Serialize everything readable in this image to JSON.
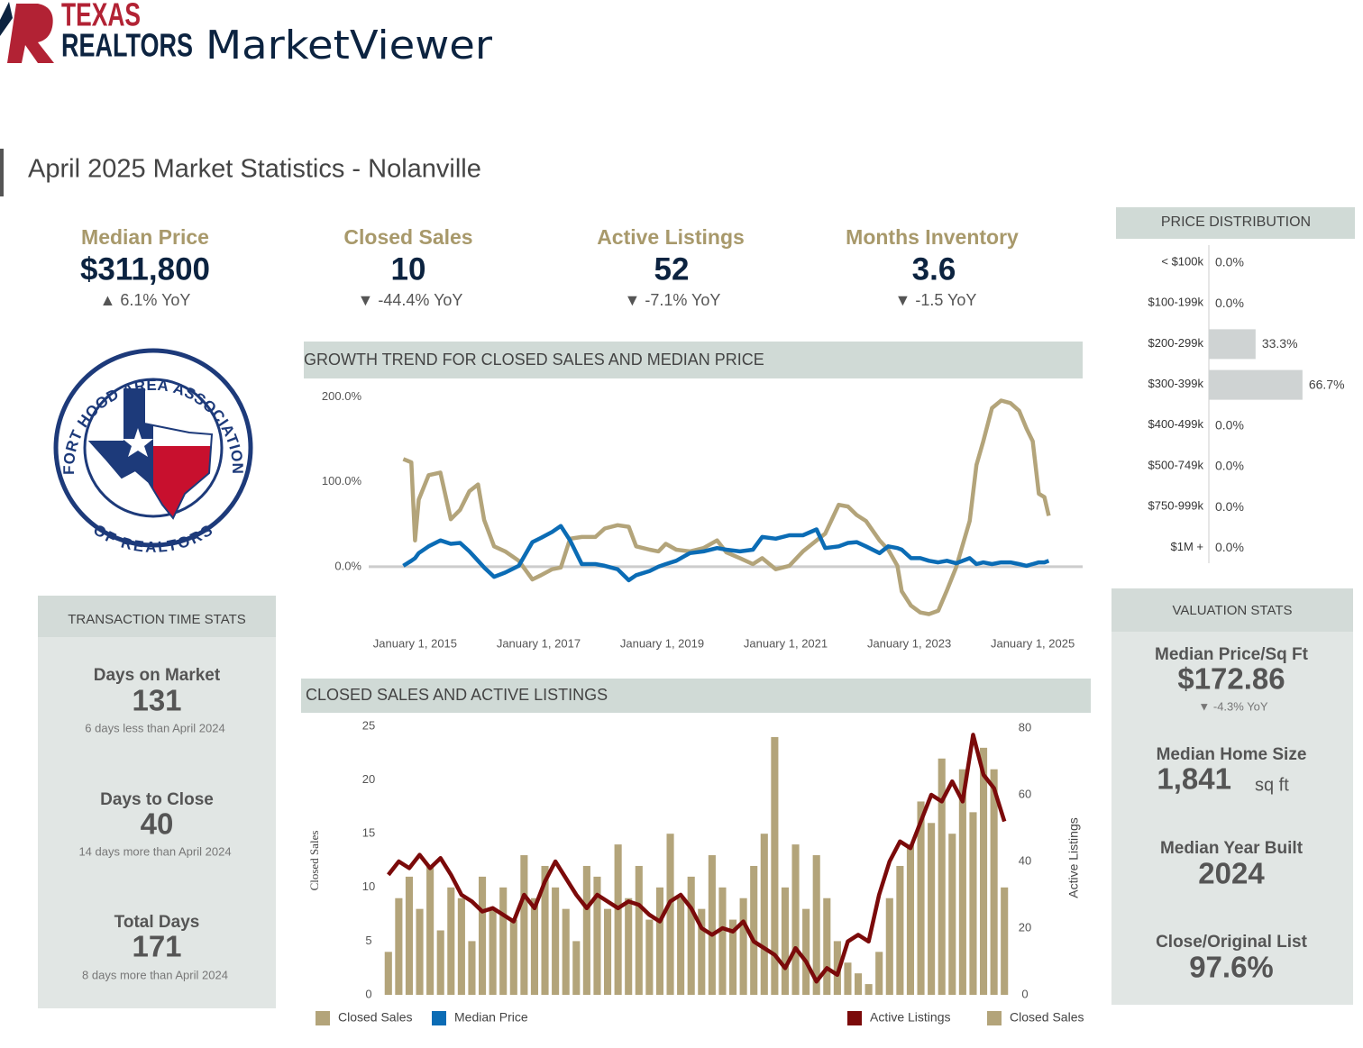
{
  "brand": {
    "line1": "TEXAS",
    "line2": "REALTORS",
    "product": "MarketViewer"
  },
  "page_title": "April 2025 Market Statistics - Nolanville",
  "kpis": [
    {
      "label": "Median Price",
      "value": "$311,800",
      "change": "▲ 6.1% YoY"
    },
    {
      "label": "Closed Sales",
      "value": 10,
      "change": "▼ -44.4% YoY"
    },
    {
      "label": "Active Listings",
      "value": 52,
      "change": "▼ -7.1% YoY"
    },
    {
      "label": "Months Inventory",
      "value": 3.6,
      "change": "▼ -1.5 YoY"
    }
  ],
  "association": {
    "top": "FORT HOOD AREA ASSOCIATION",
    "bottom": "OF REALTORS"
  },
  "transaction_stats": {
    "title": "TRANSACTION TIME STATS",
    "items": [
      {
        "label": "Days on Market",
        "value": 131,
        "note": "6 days less than April 2024"
      },
      {
        "label": "Days to Close",
        "value": 40,
        "note": "14 days more than April 2024"
      },
      {
        "label": "Total Days",
        "value": 171,
        "note": "8 days more than April 2024"
      }
    ]
  },
  "valuation_stats": {
    "title": "VALUATION STATS",
    "items": [
      {
        "label": "Median Price/Sq Ft",
        "value": "$172.86",
        "change": "▼ -4.3% YoY"
      },
      {
        "label": "Median Home Size",
        "value": "1,841",
        "unit": "sq ft"
      },
      {
        "label": "Median Year Built",
        "value": 2024
      },
      {
        "label": "Close/Original List",
        "value": "97.6%"
      }
    ]
  },
  "chart_data": [
    {
      "type": "line",
      "title": "GROWTH TREND FOR CLOSED SALES AND MEDIAN PRICE",
      "x": [
        2014.81,
        2014.94,
        2015.0,
        2015.06,
        2015.22,
        2015.41,
        2015.58,
        2015.73,
        2015.88,
        2016.02,
        2016.12,
        2016.28,
        2016.46,
        2016.68,
        2016.9,
        2017.04,
        2017.22,
        2017.36,
        2017.51,
        2017.7,
        2017.92,
        2018.07,
        2018.28,
        2018.46,
        2018.58,
        2018.8,
        2018.94,
        2019.06,
        2019.23,
        2019.45,
        2019.67,
        2019.89,
        2020.04,
        2020.26,
        2020.47,
        2020.62,
        2020.84,
        2021.06,
        2021.28,
        2021.5,
        2021.64,
        2021.86,
        2022.01,
        2022.15,
        2022.3,
        2022.52,
        2022.66,
        2022.81,
        2022.88,
        2023.03,
        2023.18,
        2023.32,
        2023.47,
        2023.61,
        2023.76,
        2023.98,
        2024.09,
        2024.2,
        2024.34,
        2024.49,
        2024.64,
        2024.78,
        2024.9,
        2025.0,
        2025.1,
        2025.19,
        2025.26
      ],
      "series": [
        {
          "name": "Closed Sales",
          "color": "#b3a47a",
          "values": [
            127,
            123,
            31,
            79,
            108,
            111,
            56,
            67,
            89,
            97,
            55,
            24,
            18,
            7,
            -15,
            -10,
            -3,
            -1,
            33,
            35,
            35,
            45,
            49,
            47,
            24,
            20,
            18,
            27,
            20,
            18,
            22,
            31,
            17,
            10,
            3,
            10,
            -3,
            1,
            18,
            31,
            39,
            73,
            71,
            61,
            54,
            31,
            20,
            1,
            -29,
            -46,
            -54,
            -56,
            -52,
            -28,
            -1,
            54,
            120,
            148,
            187,
            196,
            193,
            184,
            163,
            148,
            86,
            82,
            60
          ]
        },
        {
          "name": "Median Price",
          "color": "#0b6cb5",
          "values": [
            1,
            7,
            10,
            16,
            24,
            31,
            27,
            28,
            18,
            7,
            -1,
            -12,
            -7,
            1,
            29,
            34,
            41,
            48,
            31,
            3,
            3,
            1,
            -3,
            -16,
            -10,
            -5,
            0,
            3,
            7,
            16,
            18,
            22,
            20,
            18,
            20,
            35,
            33,
            37,
            37,
            44,
            22,
            24,
            28,
            29,
            24,
            16,
            24,
            22,
            20,
            10,
            10,
            7,
            5,
            7,
            4,
            10,
            3,
            5,
            3,
            5,
            5,
            3,
            1,
            3,
            5,
            5,
            7
          ]
        }
      ],
      "xlim": [
        2014.6,
        2025.4
      ],
      "xticks": [
        {
          "value": 2015,
          "label": "January 1, 2015"
        },
        {
          "value": 2017,
          "label": "January 1, 2017"
        },
        {
          "value": 2019,
          "label": "January 1, 2019"
        },
        {
          "value": 2021,
          "label": "January 1, 2021"
        },
        {
          "value": 2023,
          "label": "January 1, 2023"
        },
        {
          "value": 2025,
          "label": "January 1, 2025"
        }
      ],
      "ylim": [
        -65,
        205
      ],
      "yticks": [
        {
          "value": 0,
          "label": "0.0%"
        },
        {
          "value": 100,
          "label": "100.0%"
        },
        {
          "value": 200,
          "label": "200.0%"
        }
      ],
      "legend": "bottom-left"
    },
    {
      "type": "combo",
      "title": "CLOSED SALES AND ACTIVE LISTINGS",
      "categories": [
        null,
        null,
        null,
        null,
        null,
        null,
        null,
        null,
        null,
        null,
        null,
        null,
        null,
        null,
        null,
        null,
        null,
        null,
        null,
        null,
        null,
        null,
        null,
        null,
        null,
        null,
        null,
        null,
        null,
        null,
        null,
        null,
        null,
        null,
        null,
        null,
        null,
        null,
        null,
        null,
        null,
        null,
        null,
        null,
        null,
        null,
        null,
        null,
        null,
        null,
        null,
        null,
        null,
        null,
        null,
        null,
        null,
        null,
        null,
        null
      ],
      "series": [
        {
          "name": "Closed Sales",
          "type": "bar",
          "color": "#b3a47a",
          "values": [
            4,
            9,
            11,
            8,
            12,
            6,
            10,
            9,
            5,
            11,
            8,
            10,
            7,
            13,
            9,
            12,
            10,
            8,
            5,
            12,
            11,
            8,
            14,
            9,
            12,
            7,
            10,
            15,
            9,
            11,
            8,
            13,
            10,
            7,
            9,
            12,
            15,
            24,
            10,
            14,
            8,
            13,
            9,
            5,
            3,
            2,
            1,
            4,
            9,
            12,
            14,
            18,
            16,
            22,
            15,
            21,
            17,
            23,
            21,
            10
          ]
        },
        {
          "name": "Active Listings",
          "type": "line",
          "axis": "y2",
          "color": "#7b0a0a",
          "values": [
            36,
            40,
            38,
            42,
            38,
            41,
            36,
            30,
            28,
            25,
            26,
            24,
            22,
            30,
            26,
            34,
            40,
            35,
            30,
            26,
            30,
            28,
            26,
            28,
            27,
            24,
            22,
            28,
            30,
            26,
            20,
            18,
            20,
            19,
            22,
            16,
            14,
            12,
            8,
            14,
            10,
            4,
            8,
            6,
            16,
            18,
            16,
            30,
            40,
            46,
            44,
            52,
            60,
            58,
            64,
            58,
            78,
            66,
            62,
            52
          ]
        }
      ],
      "ylabel": "Closed Sales",
      "y2label": "Active Listings",
      "ylim": [
        0,
        25
      ],
      "yticks": [
        0,
        5,
        10,
        15,
        20,
        25
      ],
      "y2lim": [
        0,
        80
      ],
      "y2ticks": [
        0,
        20,
        40,
        60,
        80
      ],
      "legend_order": [
        1,
        0
      ],
      "legend": "bottom-right"
    },
    {
      "type": "hbar",
      "title": "PRICE DISTRIBUTION",
      "categories": [
        "< $100k",
        "$100-199k",
        "$200-299k",
        "$300-399k",
        "$400-499k",
        "$500-749k",
        "$750-999k",
        "$1M +"
      ],
      "values": [
        0,
        0,
        33.3,
        66.7,
        0,
        0,
        0,
        0
      ],
      "value_labels": [
        "0.0%",
        "0.0%",
        "33.3%",
        "66.7%",
        "0.0%",
        "0.0%",
        "0.0%",
        "0.0%"
      ],
      "color": "#cfd3d3",
      "xlim": [
        0,
        70
      ]
    }
  ]
}
